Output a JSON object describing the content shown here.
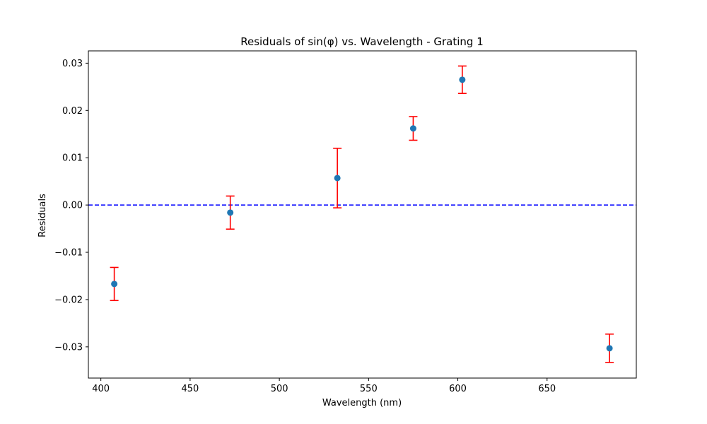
{
  "chart_data": {
    "type": "scatter",
    "title": "Residuals of sin(φ) vs. Wavelength - Grating 1",
    "xlabel": "Wavelength (nm)",
    "ylabel": "Residuals",
    "xlim": [
      393,
      700
    ],
    "ylim": [
      -0.0366,
      0.0326
    ],
    "xticks": [
      400,
      450,
      500,
      550,
      600,
      650
    ],
    "yticks": [
      -0.03,
      -0.02,
      -0.01,
      0.0,
      0.01,
      0.02,
      0.03
    ],
    "xtick_labels": [
      "400",
      "450",
      "500",
      "550",
      "600",
      "650"
    ],
    "ytick_labels": [
      "−0.03",
      "−0.02",
      "−0.01",
      "0.00",
      "0.01",
      "0.02",
      "0.03"
    ],
    "grid": false,
    "reference_line": {
      "y": 0.0,
      "style": "dashed",
      "color": "#0000ff"
    },
    "marker_color": "#1f77b4",
    "errorbar_color": "#ff0000",
    "points": [
      {
        "x": 407.5,
        "y": -0.0167,
        "err": 0.0035
      },
      {
        "x": 472.5,
        "y": -0.0016,
        "err": 0.0035
      },
      {
        "x": 532.5,
        "y": 0.0057,
        "err": 0.0063
      },
      {
        "x": 575.0,
        "y": 0.0162,
        "err": 0.0025
      },
      {
        "x": 602.5,
        "y": 0.0265,
        "err": 0.0029
      },
      {
        "x": 685.0,
        "y": -0.0303,
        "err": 0.003
      }
    ]
  }
}
